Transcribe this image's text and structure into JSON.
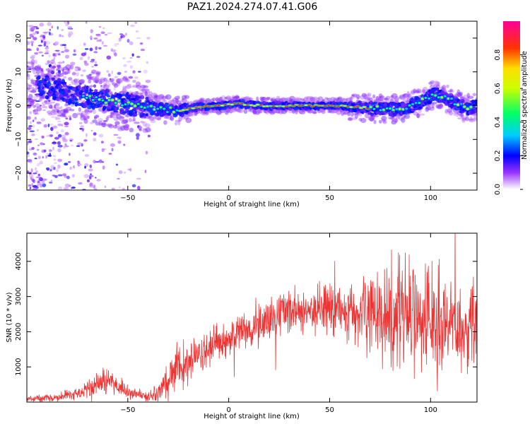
{
  "title": "PAZ1.2024.274.07.41.G06",
  "chart_data": [
    {
      "type": "heatmap",
      "title": "PAZ1.2024.274.07.41.G06",
      "xlabel": "Height of straight line (km)",
      "ylabel": "Frequency (Hz)",
      "xlim": [
        -100,
        123
      ],
      "ylim": [
        -25,
        25
      ],
      "x_ticks": [
        -50,
        0,
        50,
        100
      ],
      "y_ticks": [
        -20,
        -10,
        0,
        10,
        20
      ],
      "colorbar": {
        "label": "Normalized spectral amplitude",
        "range": [
          0,
          1
        ],
        "ticks": [
          0.0,
          0.2,
          0.4,
          0.6,
          0.8
        ]
      },
      "ridge": {
        "x": [
          -95,
          -85,
          -75,
          -65,
          -55,
          -45,
          -35,
          -25,
          -15,
          -5,
          5,
          15,
          25,
          35,
          45,
          55,
          65,
          75,
          85,
          95,
          102,
          110,
          118,
          123
        ],
        "y": [
          6,
          5,
          3,
          2,
          1,
          0,
          -1,
          -1.5,
          -0.5,
          0,
          0.6,
          0,
          0,
          0,
          0,
          0,
          -0.5,
          -1,
          -1,
          1,
          3.5,
          1.5,
          -1,
          0
        ]
      }
    },
    {
      "type": "line",
      "xlabel": "Height of straight line (km)",
      "ylabel": "SNR (10 * v/v)",
      "xlim": [
        -100,
        123
      ],
      "ylim": [
        0,
        4800
      ],
      "x_ticks": [
        -50,
        0,
        50,
        100
      ],
      "y_ticks": [
        1000,
        2000,
        3000,
        4000
      ],
      "series": [
        {
          "color": "#ee3333",
          "x": [
            -100,
            -95,
            -90,
            -85,
            -80,
            -75,
            -70,
            -65,
            -60,
            -55,
            -50,
            -45,
            -40,
            -35,
            -30,
            -25,
            -20,
            -15,
            -10,
            -5,
            0,
            5,
            10,
            15,
            20,
            25,
            30,
            35,
            40,
            45,
            50,
            55,
            60,
            65,
            70,
            75,
            80,
            85,
            90,
            95,
            100,
            105,
            110,
            115,
            120
          ],
          "y": [
            100,
            110,
            120,
            140,
            190,
            260,
            380,
            520,
            640,
            460,
            330,
            210,
            160,
            230,
            600,
            1000,
            1150,
            1300,
            1450,
            1680,
            1760,
            1930,
            2070,
            2200,
            2350,
            2460,
            2570,
            2630,
            2660,
            2650,
            2620,
            2600,
            2580,
            2560,
            2540,
            2520,
            2480,
            2450,
            2420,
            2400,
            2380,
            2360,
            2340,
            2320,
            2300
          ],
          "noise": [
            60,
            60,
            70,
            80,
            100,
            120,
            160,
            220,
            240,
            190,
            140,
            110,
            100,
            200,
            350,
            450,
            420,
            400,
            380,
            360,
            360,
            380,
            400,
            420,
            420,
            420,
            420,
            430,
            430,
            440,
            460,
            520,
            600,
            750,
            900,
            1050,
            1100,
            1150,
            1150,
            1100,
            1050,
            1000,
            950,
            900,
            850
          ]
        }
      ]
    }
  ],
  "colors": {
    "line": "#ee3333",
    "frame": "#000000",
    "background": "#ffffff"
  }
}
